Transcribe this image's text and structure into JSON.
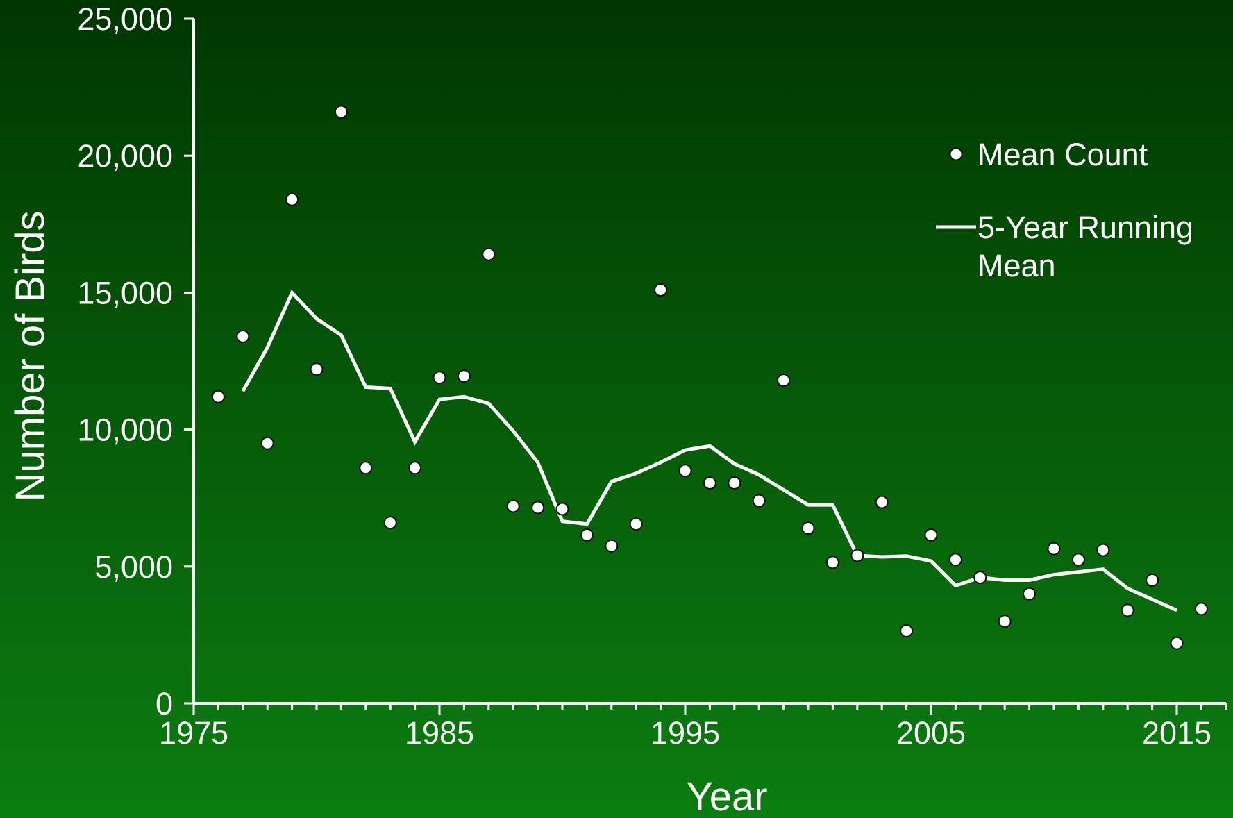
{
  "chart_data": {
    "type": "line",
    "title": "",
    "xlabel": "Year",
    "ylabel": "Number of Birds",
    "xlim": [
      1975,
      2017
    ],
    "ylim": [
      0,
      25000
    ],
    "x_ticks": [
      1975,
      1985,
      1995,
      2005,
      2015
    ],
    "y_ticks": [
      0,
      5000,
      10000,
      15000,
      20000,
      25000
    ],
    "y_tick_labels": [
      "0",
      "5,000",
      "10,000",
      "15,000",
      "20,000",
      "25,000"
    ],
    "grid": false,
    "legend": {
      "position": "top-right",
      "entries": [
        {
          "label": "Mean Count",
          "marker": "circle"
        },
        {
          "label_lines": [
            "5-Year Running",
            "Mean"
          ],
          "marker": "line"
        }
      ]
    },
    "series": [
      {
        "name": "Mean Count",
        "kind": "scatter",
        "x": [
          1976,
          1977,
          1978,
          1979,
          1980,
          1981,
          1982,
          1983,
          1984,
          1985,
          1986,
          1987,
          1988,
          1989,
          1990,
          1991,
          1992,
          1993,
          1994,
          1995,
          1996,
          1997,
          1998,
          1999,
          2000,
          2001,
          2002,
          2003,
          2004,
          2005,
          2006,
          2007,
          2008,
          2009,
          2010,
          2011,
          2012,
          2013,
          2014,
          2015,
          2016
        ],
        "y": [
          11200,
          13400,
          9500,
          18400,
          12200,
          21600,
          8600,
          6600,
          8600,
          11900,
          11950,
          16400,
          7200,
          7150,
          7100,
          6150,
          5750,
          6550,
          15100,
          8500,
          8050,
          8050,
          7400,
          11800,
          6400,
          5150,
          5400,
          7350,
          2650,
          6150,
          5250,
          4600,
          3000,
          4000,
          5650,
          5250,
          5600,
          3400,
          4500,
          2200,
          3450
        ]
      },
      {
        "name": "5-Year Running Mean",
        "kind": "line",
        "x": [
          1977,
          1978,
          1979,
          1980,
          1981,
          1982,
          1983,
          1984,
          1985,
          1986,
          1987,
          1988,
          1989,
          1990,
          1991,
          1992,
          1993,
          1994,
          1995,
          1996,
          1997,
          1998,
          1999,
          2000,
          2001,
          2002,
          2003,
          2004,
          2005,
          2006,
          2007,
          2008,
          2009,
          2010,
          2011,
          2012,
          2013,
          2014,
          2015
        ],
        "y": [
          11400,
          13000,
          15000,
          14050,
          13450,
          11550,
          11500,
          9550,
          11100,
          11200,
          10950,
          9950,
          8800,
          6650,
          6550,
          8100,
          8400,
          8800,
          9250,
          9400,
          8750,
          8350,
          7800,
          7250,
          7250,
          5400,
          5350,
          5380,
          5200,
          4300,
          4600,
          4500,
          4500,
          4700,
          4800,
          4900,
          4200,
          3800,
          3400
        ]
      }
    ],
    "colors": {
      "background_top": "#003600",
      "background_bottom": "#0b7d10",
      "foreground": "#ffffff",
      "marker_outline": "#111111"
    }
  }
}
